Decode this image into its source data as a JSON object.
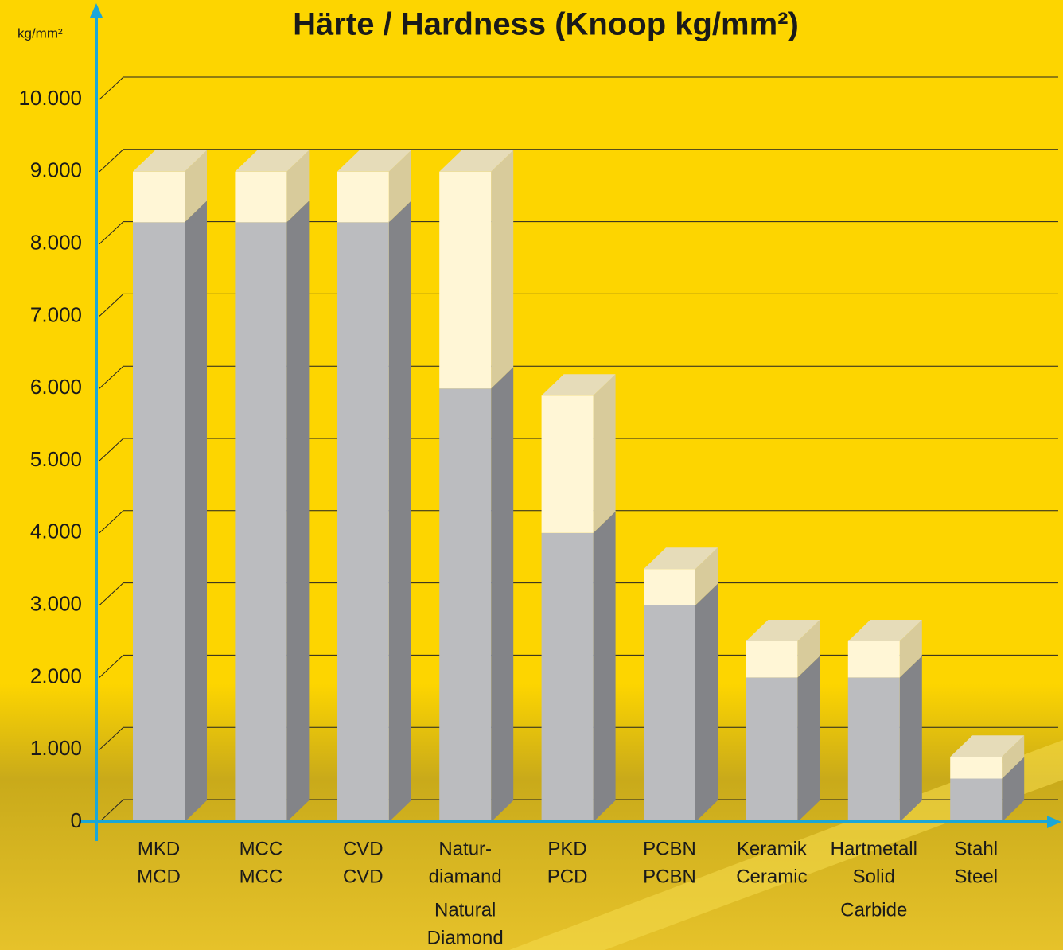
{
  "chart_data": {
    "type": "bar3d-stacked",
    "title": "Härte / Hardness (Knoop kg/mm²)",
    "y_label": "kg/mm²",
    "categories": [
      [
        "MKD",
        "MCD"
      ],
      [
        "MCC",
        "MCC"
      ],
      [
        "CVD",
        "CVD"
      ],
      [
        "Natur-",
        "diamand",
        "Natural",
        "Diamond"
      ],
      [
        "PKD",
        "PCD"
      ],
      [
        "PCBN",
        "PCBN"
      ],
      [
        "Keramik",
        "Ceramic"
      ],
      [
        "Hartmetall",
        "Solid",
        "Carbide"
      ],
      [
        "Stahl",
        "Steel"
      ]
    ],
    "series": [
      {
        "color": "#bbbcbf",
        "side_color": "#838488",
        "values": [
          8300,
          8300,
          8300,
          6000,
          4000,
          3000,
          2000,
          2000,
          600
        ]
      },
      {
        "color": "#fff6d6",
        "side_color": "#d8cb9b",
        "top_color": "#e6dcb9",
        "values": [
          700,
          700,
          700,
          3000,
          1900,
          500,
          500,
          500,
          300
        ]
      }
    ],
    "ylim": [
      0,
      10000
    ],
    "yticks": [
      0,
      {
        "value": 1000,
        "label": "1.000"
      },
      {
        "value": 2000,
        "label": "2.000"
      },
      {
        "value": 3000,
        "label": "3.000"
      },
      {
        "value": 4000,
        "label": "4.000"
      },
      {
        "value": 5000,
        "label": "5.000"
      },
      {
        "value": 6000,
        "label": "6.000"
      },
      {
        "value": 7000,
        "label": "7.000"
      },
      {
        "value": 8000,
        "label": "8.000"
      },
      {
        "value": 9000,
        "label": "9.000"
      },
      {
        "value": 10000,
        "label": "10.000"
      }
    ],
    "grid": true
  }
}
